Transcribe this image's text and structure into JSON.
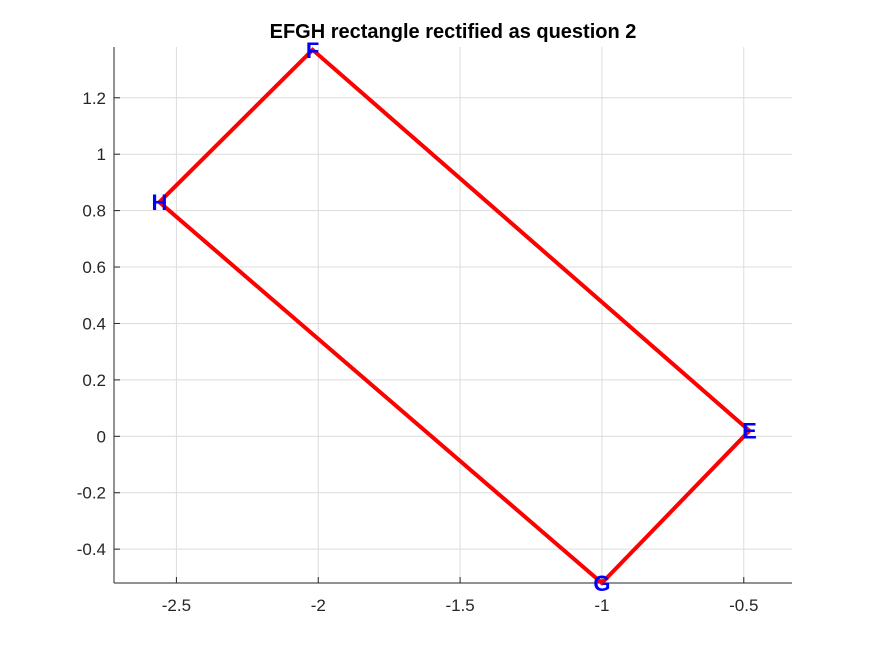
{
  "chart_data": {
    "type": "line",
    "title": "EFGH rectangle rectified as question 2",
    "xlabel": "",
    "ylabel": "",
    "xlim": [
      -2.72,
      -0.33
    ],
    "ylim": [
      -0.52,
      1.38
    ],
    "xticks": [
      -2.5,
      -2,
      -1.5,
      -1,
      -0.5
    ],
    "xtick_labels": [
      "-2.5",
      "-2",
      "-1.5",
      "-1",
      "-0.5"
    ],
    "yticks": [
      -0.4,
      -0.2,
      0,
      0.2,
      0.4,
      0.6,
      0.8,
      1,
      1.2
    ],
    "ytick_labels": [
      "-0.4",
      "-0.2",
      "0",
      "0.2",
      "0.4",
      "0.6",
      "0.8",
      "1",
      "1.2"
    ],
    "grid": true,
    "series": [
      {
        "color": "#ff0000",
        "x": [
          -0.48,
          -2.02,
          -2.56,
          -1.0,
          -0.48
        ],
        "y": [
          0.02,
          1.37,
          0.83,
          -0.52,
          0.02
        ]
      }
    ],
    "vertices": [
      {
        "label": "E",
        "x": -0.48,
        "y": 0.02
      },
      {
        "label": "F",
        "x": -2.02,
        "y": 1.37
      },
      {
        "label": "H",
        "x": -2.56,
        "y": 0.83
      },
      {
        "label": "G",
        "x": -1.0,
        "y": -0.52
      }
    ],
    "label_color": "#0000ff"
  }
}
